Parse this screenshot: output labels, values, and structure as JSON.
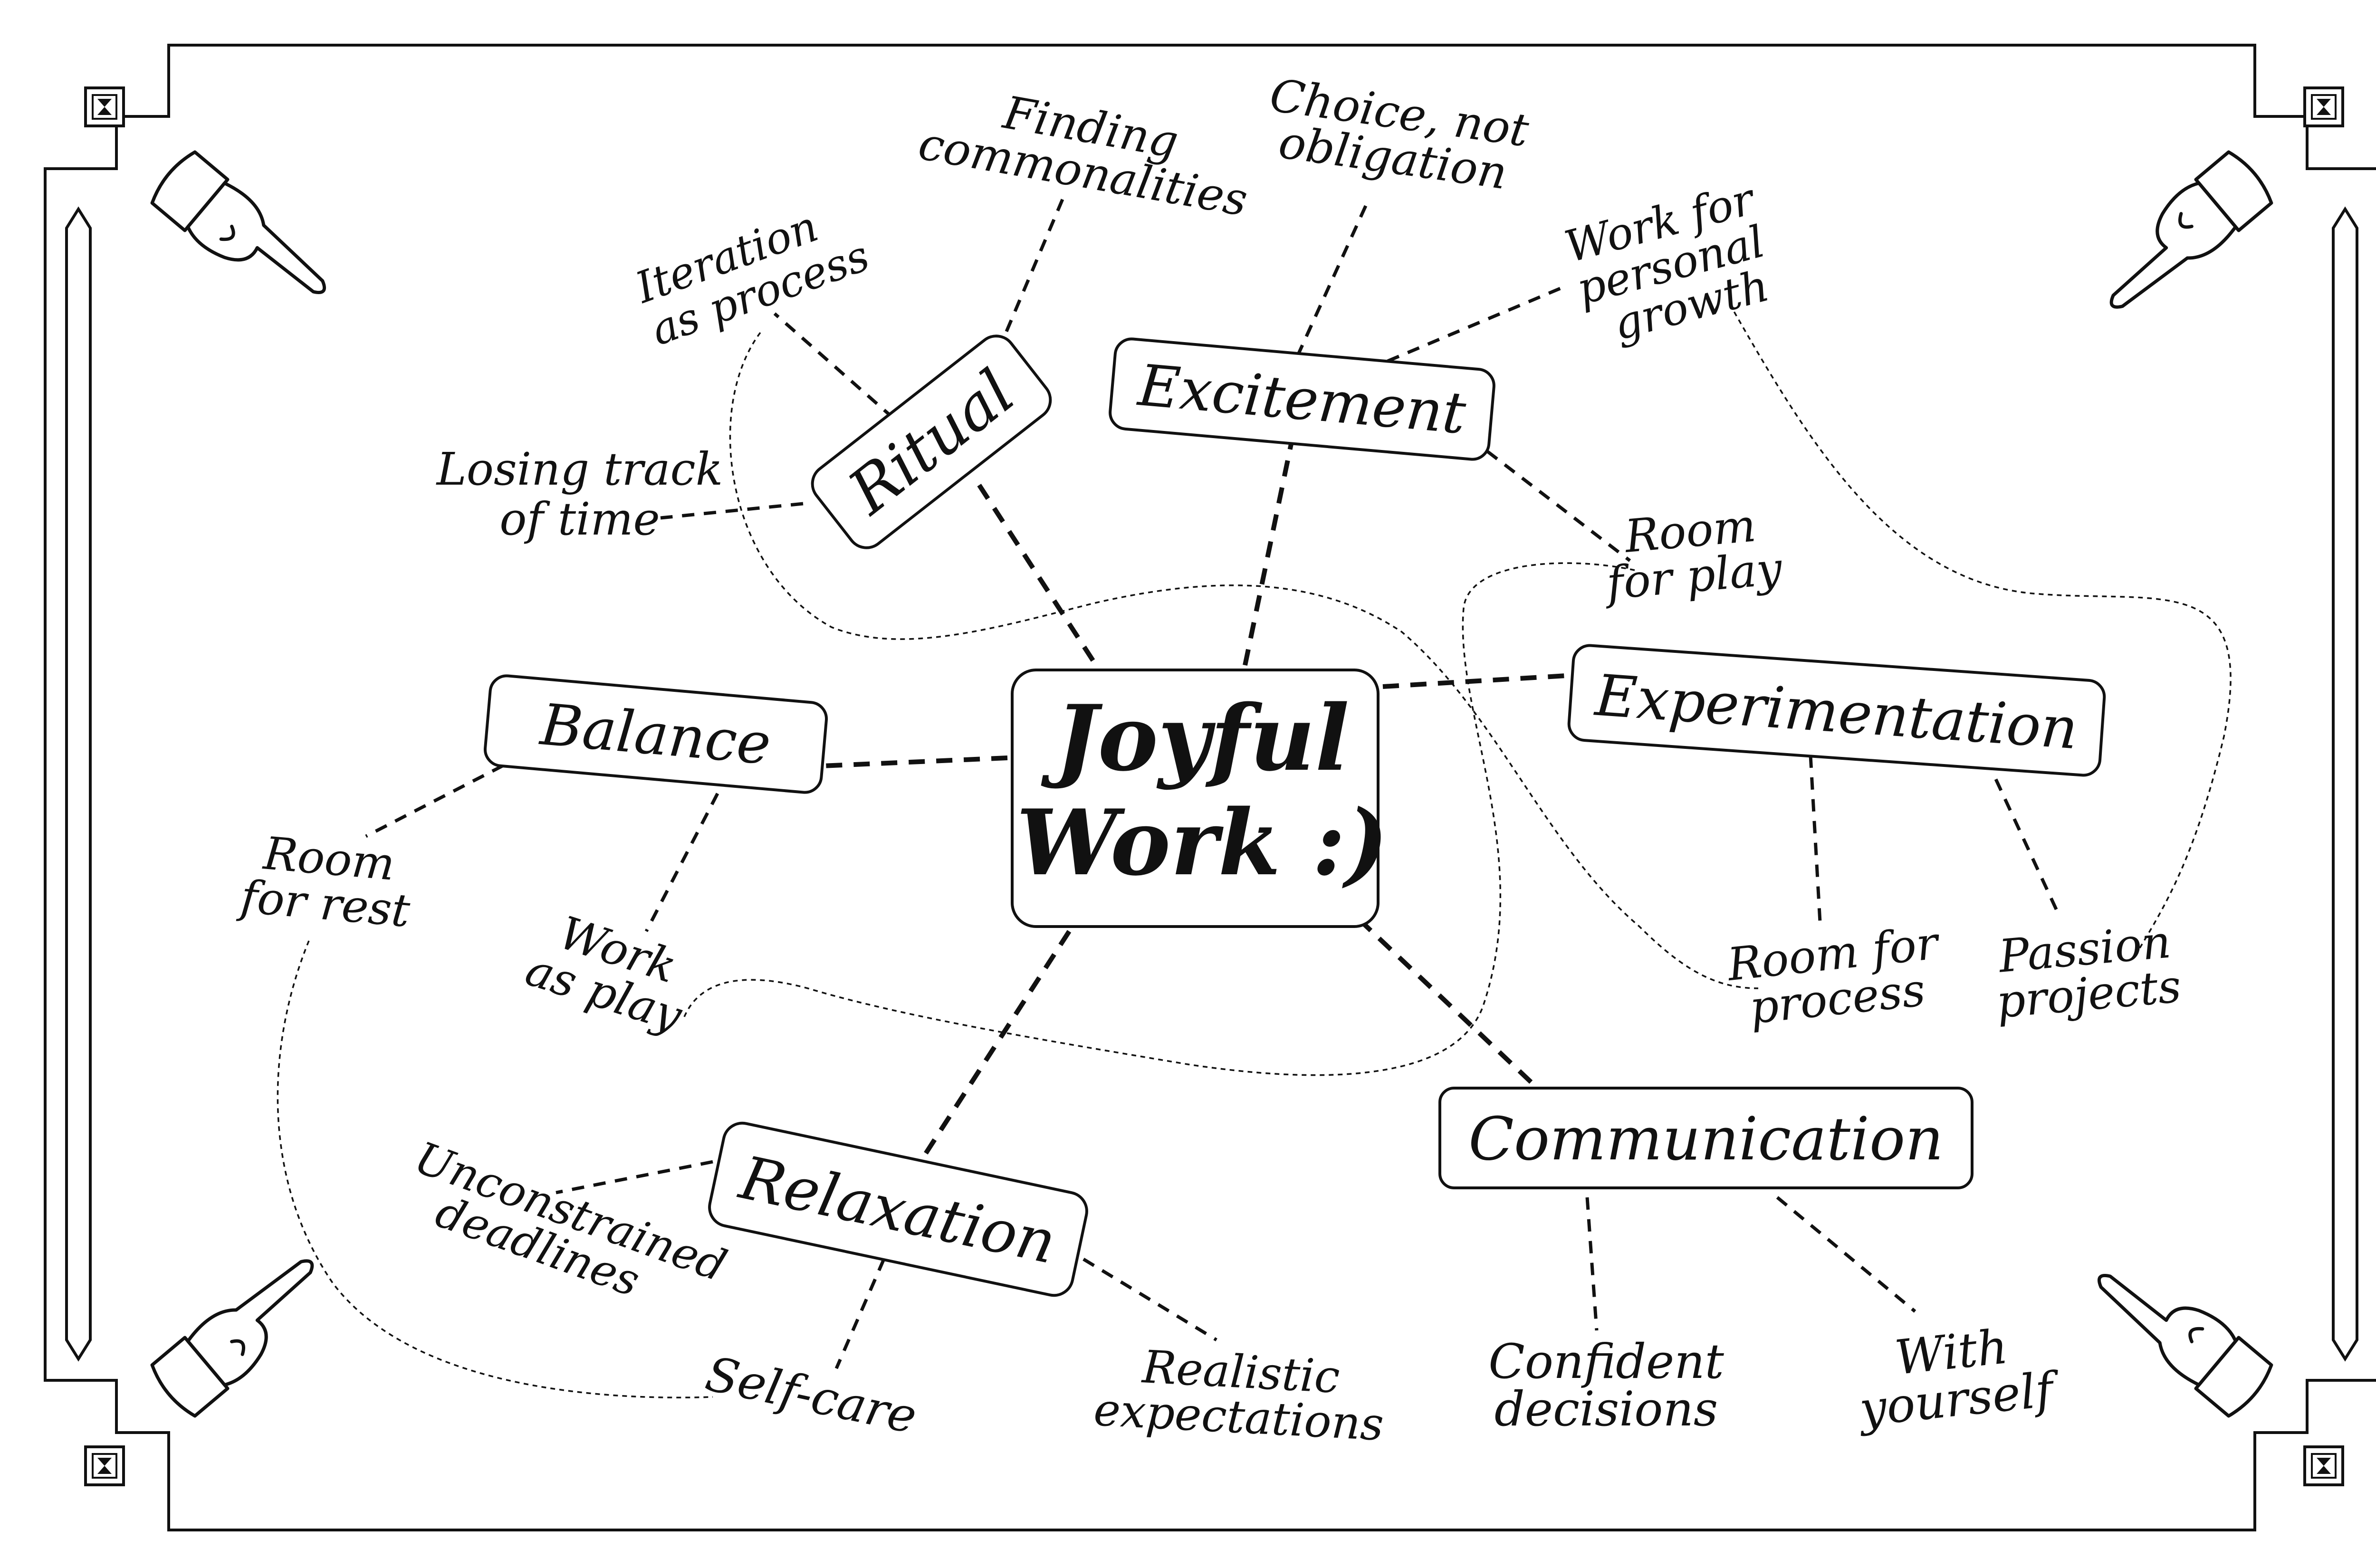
{
  "center": {
    "line1": "Joyful",
    "line2": "Work :)"
  },
  "branches": {
    "ritual": "Ritual",
    "excitement": "Excitement",
    "balance": "Balance",
    "experimentation": "Experimentation",
    "relaxation": "Relaxation",
    "communication": "Communication"
  },
  "leaves": {
    "finding_commonalities": [
      "Finding",
      "commonalities"
    ],
    "iteration_as_process": [
      "Iteration",
      "as process"
    ],
    "losing_track_of_time": [
      "Losing track",
      "of time"
    ],
    "choice_not_obligation": [
      "Choice, not",
      "obligation"
    ],
    "work_for_personal_growth": [
      "Work for",
      "personal",
      "growth"
    ],
    "room_for_play": [
      "Room",
      "for play"
    ],
    "room_for_rest": [
      "Room",
      "for rest"
    ],
    "work_as_play": [
      "Work",
      "as play"
    ],
    "room_for_process": [
      "Room for",
      "process"
    ],
    "passion_projects": [
      "Passion",
      "projects"
    ],
    "unconstrained_deadlines": [
      "Unconstrained",
      "deadlines"
    ],
    "self_care": [
      "Self-care"
    ],
    "realistic_expectations": [
      "Realistic",
      "expectations"
    ],
    "confident_decisions": [
      "Confident",
      "decisions"
    ],
    "with_yourself": [
      "With",
      "yourself"
    ]
  },
  "icons": {
    "corner": "pointing-hand-icon",
    "frame_ornament": "hourglass-ornament-icon"
  },
  "colors": {
    "ink": "#111111",
    "paper": "#ffffff"
  }
}
